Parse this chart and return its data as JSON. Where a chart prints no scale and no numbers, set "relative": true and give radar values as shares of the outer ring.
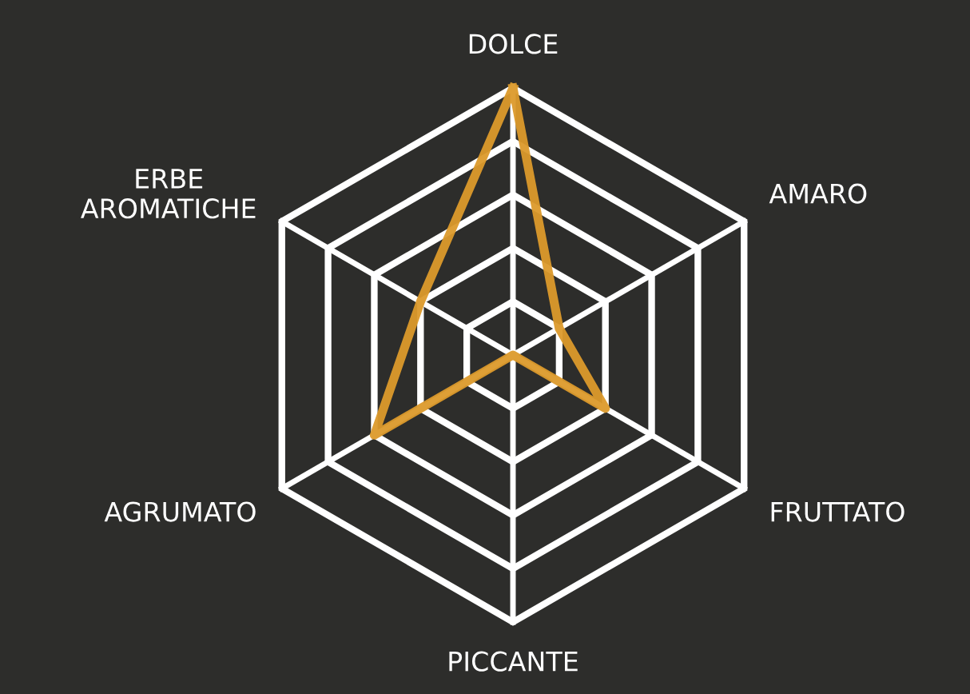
{
  "chart_data": {
    "type": "radar",
    "relative": true,
    "grid": true,
    "categories": [
      "DOLCE",
      "AMARO",
      "FRUTTATO",
      "PICCANTE",
      "AGRUMATO",
      "ERBE\nAROMATICHE"
    ],
    "series": [
      {
        "color": "#dc9a2b",
        "values": [
          1.0,
          0.2,
          0.4,
          0.0,
          0.6,
          0.4
        ]
      }
    ]
  }
}
